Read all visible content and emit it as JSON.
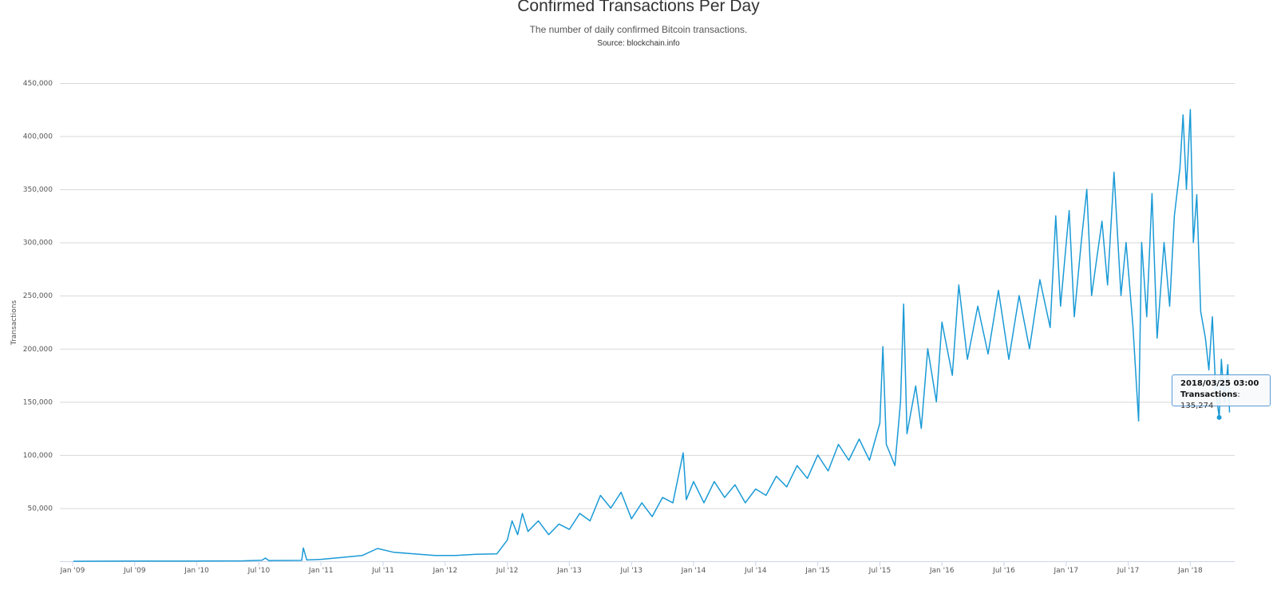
{
  "chart_data": {
    "type": "line",
    "title": "Confirmed Transactions Per Day",
    "subtitle": "The number of daily confirmed Bitcoin transactions.",
    "source": "Source: blockchain.info",
    "xlabel": "",
    "ylabel": "Transactions",
    "ylim": [
      0,
      450000
    ],
    "yticks": [
      50000,
      100000,
      150000,
      200000,
      250000,
      300000,
      350000,
      400000,
      450000
    ],
    "ytick_labels": [
      "50,000",
      "100,000",
      "150,000",
      "200,000",
      "250,000",
      "300,000",
      "350,000",
      "400,000",
      "450,000"
    ],
    "xticks": [
      "2009-01-01",
      "2009-07-01",
      "2010-01-01",
      "2010-07-01",
      "2011-01-01",
      "2011-07-01",
      "2012-01-01",
      "2012-07-01",
      "2013-01-01",
      "2013-07-01",
      "2014-01-01",
      "2014-07-01",
      "2015-01-01",
      "2015-07-01",
      "2016-01-01",
      "2016-07-01",
      "2017-01-01",
      "2017-07-01",
      "2018-01-01"
    ],
    "xtick_labels": [
      "Jan '09",
      "Jul '09",
      "Jan '10",
      "Jul '10",
      "Jan '11",
      "Jul '11",
      "Jan '12",
      "Jul '12",
      "Jan '13",
      "Jul '13",
      "Jan '14",
      "Jul '14",
      "Jan '15",
      "Jul '15",
      "Jan '16",
      "Jul '16",
      "Jan '17",
      "Jul '17",
      "Jan '18"
    ],
    "grid": true,
    "legend": "none",
    "color": "#1a9ad6",
    "series": [
      {
        "name": "Transactions",
        "points": [
          [
            "2009-01-03",
            10
          ],
          [
            "2009-07-01",
            150
          ],
          [
            "2010-01-01",
            250
          ],
          [
            "2010-05-15",
            400
          ],
          [
            "2010-07-10",
            900
          ],
          [
            "2010-07-20",
            3000
          ],
          [
            "2010-07-30",
            700
          ],
          [
            "2010-11-05",
            800
          ],
          [
            "2010-11-10",
            12500
          ],
          [
            "2010-11-20",
            1200
          ],
          [
            "2011-01-01",
            1800
          ],
          [
            "2011-03-01",
            3500
          ],
          [
            "2011-05-01",
            5500
          ],
          [
            "2011-06-15",
            12000
          ],
          [
            "2011-08-01",
            8500
          ],
          [
            "2011-10-01",
            7000
          ],
          [
            "2011-12-01",
            5500
          ],
          [
            "2012-02-01",
            5500
          ],
          [
            "2012-04-01",
            6500
          ],
          [
            "2012-06-01",
            7000
          ],
          [
            "2012-07-01",
            20000
          ],
          [
            "2012-07-15",
            38000
          ],
          [
            "2012-08-01",
            25000
          ],
          [
            "2012-08-15",
            45000
          ],
          [
            "2012-09-01",
            28000
          ],
          [
            "2012-10-01",
            38000
          ],
          [
            "2012-11-01",
            25000
          ],
          [
            "2012-12-01",
            35000
          ],
          [
            "2013-01-01",
            30000
          ],
          [
            "2013-02-01",
            45000
          ],
          [
            "2013-03-01",
            38000
          ],
          [
            "2013-04-01",
            62000
          ],
          [
            "2013-05-01",
            50000
          ],
          [
            "2013-06-01",
            65000
          ],
          [
            "2013-07-01",
            40000
          ],
          [
            "2013-08-01",
            55000
          ],
          [
            "2013-09-01",
            42000
          ],
          [
            "2013-10-01",
            60000
          ],
          [
            "2013-11-01",
            55000
          ],
          [
            "2013-12-01",
            102000
          ],
          [
            "2013-12-10",
            58000
          ],
          [
            "2014-01-01",
            75000
          ],
          [
            "2014-02-01",
            55000
          ],
          [
            "2014-03-01",
            75000
          ],
          [
            "2014-04-01",
            60000
          ],
          [
            "2014-05-01",
            72000
          ],
          [
            "2014-06-01",
            55000
          ],
          [
            "2014-07-01",
            68000
          ],
          [
            "2014-08-01",
            62000
          ],
          [
            "2014-09-01",
            80000
          ],
          [
            "2014-10-01",
            70000
          ],
          [
            "2014-11-01",
            90000
          ],
          [
            "2014-12-01",
            78000
          ],
          [
            "2015-01-01",
            100000
          ],
          [
            "2015-02-01",
            85000
          ],
          [
            "2015-03-01",
            110000
          ],
          [
            "2015-04-01",
            95000
          ],
          [
            "2015-05-01",
            115000
          ],
          [
            "2015-06-01",
            95000
          ],
          [
            "2015-07-01",
            130000
          ],
          [
            "2015-07-10",
            202000
          ],
          [
            "2015-07-20",
            110000
          ],
          [
            "2015-08-15",
            90000
          ],
          [
            "2015-09-01",
            150000
          ],
          [
            "2015-09-10",
            242000
          ],
          [
            "2015-09-20",
            120000
          ],
          [
            "2015-10-15",
            165000
          ],
          [
            "2015-11-01",
            125000
          ],
          [
            "2015-11-20",
            200000
          ],
          [
            "2015-12-15",
            150000
          ],
          [
            "2016-01-01",
            225000
          ],
          [
            "2016-02-01",
            175000
          ],
          [
            "2016-02-20",
            260000
          ],
          [
            "2016-03-15",
            190000
          ],
          [
            "2016-04-15",
            240000
          ],
          [
            "2016-05-15",
            195000
          ],
          [
            "2016-06-15",
            255000
          ],
          [
            "2016-07-15",
            190000
          ],
          [
            "2016-08-15",
            250000
          ],
          [
            "2016-09-15",
            200000
          ],
          [
            "2016-10-15",
            265000
          ],
          [
            "2016-11-15",
            220000
          ],
          [
            "2016-12-01",
            325000
          ],
          [
            "2016-12-15",
            240000
          ],
          [
            "2017-01-10",
            330000
          ],
          [
            "2017-01-25",
            230000
          ],
          [
            "2017-02-15",
            300000
          ],
          [
            "2017-03-01",
            350000
          ],
          [
            "2017-03-15",
            250000
          ],
          [
            "2017-04-15",
            320000
          ],
          [
            "2017-05-01",
            260000
          ],
          [
            "2017-05-20",
            366000
          ],
          [
            "2017-06-10",
            250000
          ],
          [
            "2017-06-25",
            300000
          ],
          [
            "2017-07-15",
            220000
          ],
          [
            "2017-08-01",
            132000
          ],
          [
            "2017-08-10",
            300000
          ],
          [
            "2017-08-25",
            230000
          ],
          [
            "2017-09-10",
            346000
          ],
          [
            "2017-09-25",
            210000
          ],
          [
            "2017-10-15",
            300000
          ],
          [
            "2017-11-01",
            240000
          ],
          [
            "2017-11-15",
            325000
          ],
          [
            "2017-12-01",
            370000
          ],
          [
            "2017-12-10",
            420000
          ],
          [
            "2017-12-20",
            350000
          ],
          [
            "2018-01-01",
            425000
          ],
          [
            "2018-01-10",
            300000
          ],
          [
            "2018-01-20",
            345000
          ],
          [
            "2018-02-01",
            235000
          ],
          [
            "2018-02-15",
            210000
          ],
          [
            "2018-02-25",
            180000
          ],
          [
            "2018-03-05",
            230000
          ],
          [
            "2018-03-15",
            160000
          ],
          [
            "2018-03-25",
            135274
          ],
          [
            "2018-04-01",
            190000
          ],
          [
            "2018-04-10",
            150000
          ],
          [
            "2018-04-20",
            185000
          ],
          [
            "2018-04-25",
            140000
          ]
        ]
      }
    ]
  },
  "tooltip": {
    "date": "2018/03/25 03:00",
    "label": "Transactions",
    "value": "135,274"
  }
}
